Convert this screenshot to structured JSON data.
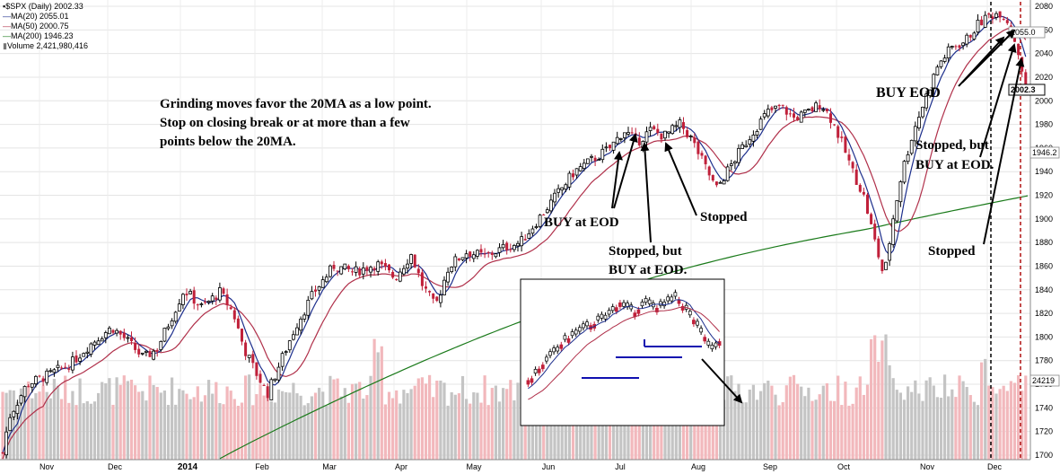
{
  "legend": {
    "symbol": "$SPX (Daily) 2002.33",
    "ma20": "MA(20) 2055.01",
    "ma50": "MA(50) 2000.75",
    "ma200": "MA(200) 1946.23",
    "volume": "Volume 2,421,980,416"
  },
  "colors": {
    "up": "#000000",
    "down": "#c0203a",
    "ma20": "#1c2e8c",
    "ma50": "#b0304a",
    "ma200": "#1a7a1a",
    "vol_up": "#c4c4c4",
    "vol_down": "#f2b8bc",
    "highlight_line": "#1010b0",
    "vline_dark": "#000000",
    "vline_red": "#b01010"
  },
  "annotations": {
    "main_text": [
      "Grinding moves favor the 20MA as a low point.",
      "Stop on closing break or at more than a few",
      "points below the 20MA."
    ],
    "buy_eod_jul": "BUY at EOD",
    "stopped_aug": "Stopped",
    "stopped_but_1": "Stopped, but",
    "stopped_but_2": "BUY at EOD.",
    "buy_eod_dec": "BUY EOD",
    "stopped_but_dec_1": "Stopped, but",
    "stopped_but_dec_2": "BUY at EOD.",
    "stopped_dec": "Stopped"
  },
  "price_labels": {
    "ma20": "2055.0",
    "last": "2002.3",
    "ma200": "1946.2",
    "volume": "24219"
  },
  "chart_data": {
    "type": "candlestick",
    "title": "$SPX (Daily) 2002.33",
    "ylim": [
      1695,
      2085
    ],
    "y_ticks": [
      1700,
      1720,
      1740,
      1760,
      1780,
      1800,
      1820,
      1840,
      1860,
      1880,
      1900,
      1920,
      1940,
      1960,
      1980,
      2000,
      2020,
      2040,
      2060,
      2080
    ],
    "x_labels": [
      "Nov",
      "Dec",
      "2014",
      "Feb",
      "Mar",
      "Apr",
      "May",
      "Jun",
      "Jul",
      "Aug",
      "Sep",
      "Oct",
      "Nov",
      "Dec"
    ],
    "x_label_bold": "2014",
    "grid": true,
    "legend_position": "top-left",
    "series": [
      {
        "name": "$SPX (Daily)",
        "last": 2002.33
      },
      {
        "name": "MA(20)",
        "last": 2055.01
      },
      {
        "name": "MA(50)",
        "last": 2000.75
      },
      {
        "name": "MA(200)",
        "last": 1946.23
      },
      {
        "name": "Volume",
        "last": 2421980416
      }
    ],
    "close_path": {
      "months": [
        "Nov",
        "Dec",
        "2014",
        "Feb",
        "Mar",
        "Apr",
        "May",
        "Jun",
        "Jul",
        "Aug",
        "Sep",
        "Oct",
        "Nov",
        "Dec"
      ],
      "close": [
        1760,
        1800,
        1842,
        1782,
        1870,
        1860,
        1880,
        1948,
        1972,
        1925,
        1995,
        1975,
        2040,
        2060
      ]
    }
  }
}
